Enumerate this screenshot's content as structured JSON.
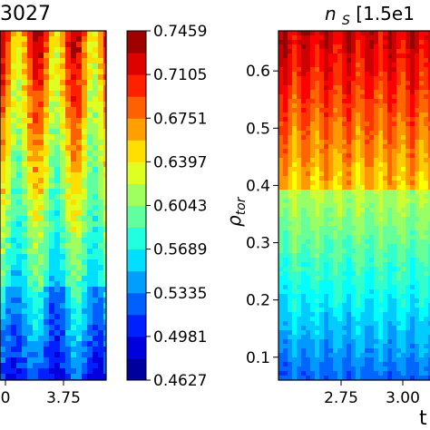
{
  "chart_data": [
    {
      "type": "heatmap",
      "title": "3027",
      "xlabel": "",
      "ylabel": "",
      "x_ticks": [
        "0",
        "3.75"
      ],
      "colorbar": {
        "ticks": [
          "0.7459",
          "0.7105",
          "0.6751",
          "0.6397",
          "0.6043",
          "0.5689",
          "0.5335",
          "0.4981",
          "0.4627"
        ],
        "vmin": 0.4627,
        "vmax": 0.7459,
        "levels": 16,
        "colormap": "jet"
      },
      "description_values": {
        "structure": "vertical bands modulated in time; high values (~0.69) near top, low values (~0.50) near bottom",
        "band_count_visible": 6
      }
    },
    {
      "type": "heatmap",
      "title": "n_S [1.5e1",
      "ylabel": "ρ_tor",
      "xlabel": "t",
      "x_ticks": [
        "2.75",
        "3.00"
      ],
      "y_ticks": [
        "0.6",
        "0.5",
        "0.4",
        "0.3",
        "0.2",
        "0.1"
      ],
      "ylim": [
        0.06,
        0.67
      ],
      "colormap": "jet",
      "description_values": {
        "structure": "sawtooth-like periodic bands in time; high values near rho 0.55-0.65, low values near rho 0.1-0.25",
        "band_count_visible": 9
      }
    }
  ],
  "colors": {
    "jet_low": "#00007f",
    "jet_mid": "#7fff7f",
    "jet_high": "#7f0000"
  }
}
